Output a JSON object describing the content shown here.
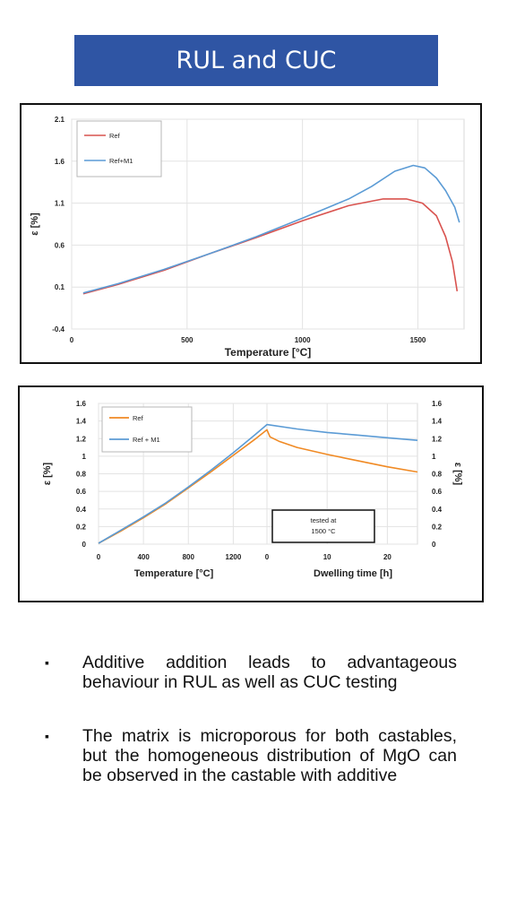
{
  "header": {
    "title": "RUL and CUC"
  },
  "chart_data": [
    {
      "type": "line",
      "xlabel": "Temperature [°C]",
      "ylabel": "ε [%]",
      "xlim": [
        0,
        1700
      ],
      "ylim": [
        -0.4,
        2.1
      ],
      "xticks": [
        0,
        500,
        1000,
        1500
      ],
      "xtick_labels": [
        "0",
        "500",
        "1000",
        "1500"
      ],
      "yticks": [
        -0.4,
        0.1,
        0.6,
        1.1,
        1.6,
        2.1
      ],
      "ytick_labels": [
        "-0.4",
        "0.1",
        "0.6",
        "1.1",
        "1.6",
        "2.1"
      ],
      "grid": true,
      "legend": "top-left",
      "series": [
        {
          "name": "Ref",
          "color": "#d9534f",
          "x": [
            50,
            200,
            400,
            600,
            800,
            1000,
            1200,
            1350,
            1450,
            1520,
            1580,
            1620,
            1650,
            1670
          ],
          "y": [
            0.02,
            0.13,
            0.3,
            0.5,
            0.69,
            0.89,
            1.07,
            1.15,
            1.15,
            1.1,
            0.95,
            0.7,
            0.4,
            0.05
          ]
        },
        {
          "name": "Ref+M1",
          "color": "#5b9bd5",
          "x": [
            50,
            200,
            400,
            600,
            800,
            1000,
            1200,
            1300,
            1400,
            1480,
            1530,
            1580,
            1620,
            1660,
            1680
          ],
          "y": [
            0.03,
            0.14,
            0.31,
            0.5,
            0.7,
            0.92,
            1.15,
            1.3,
            1.48,
            1.55,
            1.52,
            1.4,
            1.25,
            1.05,
            0.87
          ]
        }
      ]
    },
    {
      "type": "line",
      "xlabel_left": "Temperature [°C]",
      "xlabel_right": "Dwelling time [h]",
      "ylabel_left": "ε [%]",
      "ylabel_right": "ε [%]",
      "ylim": [
        0,
        1.6
      ],
      "yticks": [
        0,
        0.2,
        0.4,
        0.6,
        0.8,
        1,
        1.2,
        1.4,
        1.6
      ],
      "ytick_labels": [
        "0",
        "0.2",
        "0.4",
        "0.6",
        "0.8",
        "1",
        "1.2",
        "1.4",
        "1.6"
      ],
      "temperature_axis": {
        "xlim": [
          0,
          1500
        ],
        "xticks": [
          0,
          400,
          800,
          1200
        ],
        "xtick_labels": [
          "0",
          "400",
          "800",
          "1200"
        ]
      },
      "time_axis": {
        "xlim": [
          0,
          25
        ],
        "xticks": [
          0,
          10,
          20
        ],
        "xtick_labels": [
          "0",
          "10",
          "20"
        ]
      },
      "annotation": [
        "tested at",
        "1500 °C"
      ],
      "grid": true,
      "legend": "top-left",
      "series": [
        {
          "name": "Ref",
          "color": "#f08a24",
          "temperature": {
            "x": [
              0,
              200,
              400,
              600,
              800,
              1000,
              1200,
              1400,
              1500
            ],
            "y": [
              0.01,
              0.15,
              0.3,
              0.46,
              0.64,
              0.82,
              1.01,
              1.2,
              1.3
            ]
          },
          "time": {
            "x": [
              0,
              0.5,
              2,
              5,
              10,
              15,
              20,
              25
            ],
            "y": [
              1.3,
              1.22,
              1.17,
              1.1,
              1.02,
              0.95,
              0.88,
              0.82
            ]
          }
        },
        {
          "name": "Ref + M1",
          "color": "#5b9bd5",
          "temperature": {
            "x": [
              0,
              200,
              400,
              600,
              800,
              1000,
              1200,
              1400,
              1500
            ],
            "y": [
              0.01,
              0.16,
              0.31,
              0.47,
              0.65,
              0.84,
              1.04,
              1.25,
              1.36
            ]
          },
          "time": {
            "x": [
              0,
              5,
              10,
              15,
              20,
              25
            ],
            "y": [
              1.36,
              1.31,
              1.27,
              1.24,
              1.21,
              1.18
            ]
          }
        }
      ]
    }
  ],
  "bullets": [
    "Additive addition leads to advantageous behaviour in RUL as well as CUC testing",
    "The matrix is microporous for both castables, but the homogeneous distribution of MgO can be observed in the castable with additive"
  ]
}
